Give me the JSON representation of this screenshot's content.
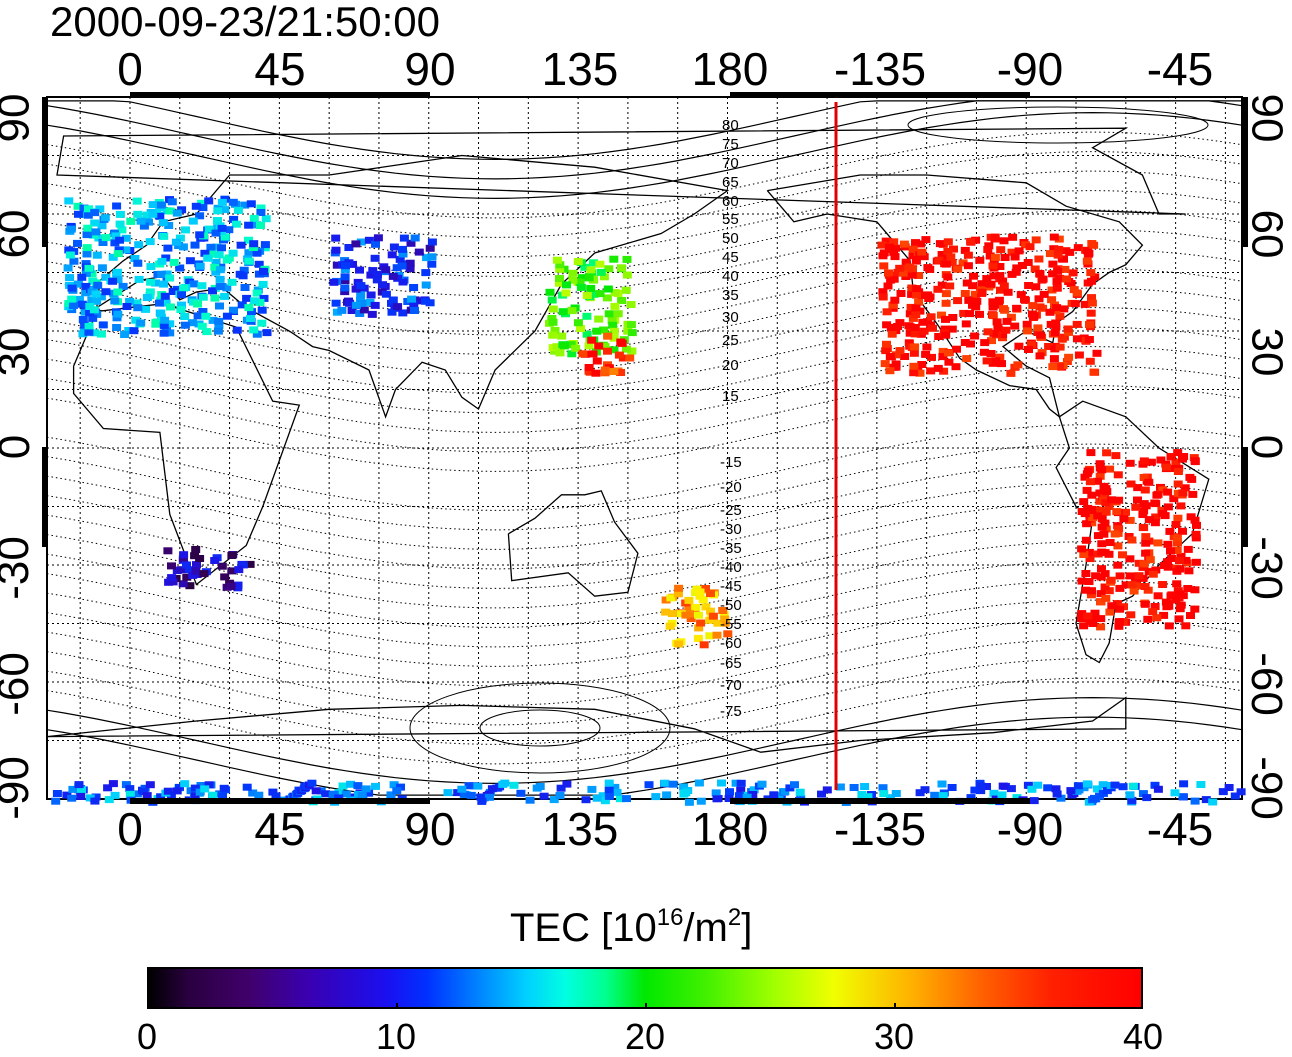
{
  "timestamp": "2000-09-23/21:50:00",
  "axes": {
    "top_ticks": [
      "0",
      "45",
      "90",
      "135",
      "180",
      "-135",
      "-90",
      "-45"
    ],
    "bottom_ticks": [
      "0",
      "45",
      "90",
      "135",
      "180",
      "-135",
      "-90",
      "-45"
    ],
    "left_ticks": [
      "90",
      "60",
      "30",
      "0",
      "-30",
      "-60",
      "-90"
    ],
    "right_ticks": [
      "90",
      "60",
      "30",
      "0",
      "-30",
      "-60",
      "-90"
    ]
  },
  "contour_labels": [
    "80",
    "75",
    "70",
    "65",
    "60",
    "55",
    "50",
    "45",
    "40",
    "35",
    "30",
    "25",
    "20",
    "15",
    "-15",
    "-20",
    "-25",
    "-30",
    "-35",
    "-40",
    "-45",
    "-50",
    "-55",
    "-60",
    "-65",
    "-70",
    "-75"
  ],
  "colorbar": {
    "title_main": "TEC  [10",
    "title_sup1": "16",
    "title_mid": "/m",
    "title_sup2": "2",
    "title_end": "]",
    "ticks": [
      "0",
      "10",
      "20",
      "30",
      "40"
    ]
  },
  "colors": {
    "high_tec": "#ff0000",
    "low_tec": "#000000",
    "terminator_line": "#e00000"
  },
  "chart_data": {
    "type": "heatmap",
    "xlim": [
      -25,
      335
    ],
    "ylim": [
      -90,
      90
    ],
    "meridian_line_lon": 211,
    "color_scale": [
      0,
      40
    ],
    "regions": [
      {
        "lon": [
          -20,
          40
        ],
        "lat": [
          30,
          65
        ],
        "tec": 14
      },
      {
        "lon": [
          60,
          90
        ],
        "lat": [
          35,
          55
        ],
        "tec": 10
      },
      {
        "lon": [
          125,
          150
        ],
        "lat": [
          25,
          50
        ],
        "tec": 23
      },
      {
        "lon": [
          135,
          150
        ],
        "lat": [
          20,
          30
        ],
        "tec": 38
      },
      {
        "lon": [
          225,
          290
        ],
        "lat": [
          20,
          55
        ],
        "tec": 40
      },
      {
        "lon": [
          285,
          320
        ],
        "lat": [
          -45,
          0
        ],
        "tec": 40
      },
      {
        "lon": [
          10,
          35
        ],
        "lat": [
          -35,
          -25
        ],
        "tec": 6
      },
      {
        "lon": [
          160,
          180
        ],
        "lat": [
          -50,
          -35
        ],
        "tec": 33
      },
      {
        "lon": [
          -25,
          335
        ],
        "lat": [
          -90,
          -85
        ],
        "tec": 12
      }
    ]
  }
}
